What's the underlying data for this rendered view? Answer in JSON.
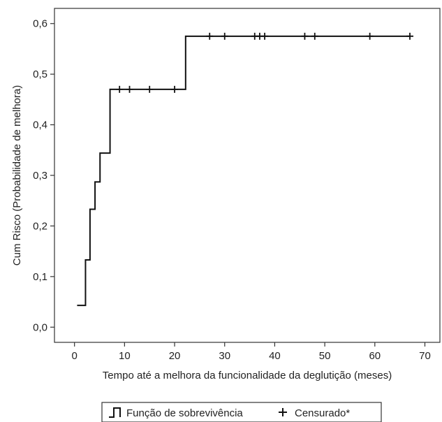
{
  "chart_data": {
    "type": "line",
    "title": "",
    "xlabel": "Tempo até a melhora da funcionalidade da deglutição (meses)",
    "ylabel": "Cum Risco (Probabilidade de melhora)",
    "xlim": [
      -4,
      73
    ],
    "ylim": [
      -0.03,
      0.63
    ],
    "x_ticks": [
      0,
      10,
      20,
      30,
      40,
      50,
      60,
      70
    ],
    "x_tick_labels": [
      "0",
      "10",
      "20",
      "30",
      "40",
      "50",
      "60",
      "70"
    ],
    "y_ticks": [
      0.0,
      0.1,
      0.2,
      0.3,
      0.4,
      0.5,
      0.6
    ],
    "y_tick_labels": [
      "0,0",
      "0,1",
      "0,2",
      "0,3",
      "0,4",
      "0,5",
      "0,6"
    ],
    "grid": false,
    "legend_position": "bottom",
    "series": [
      {
        "name": "Função de sobrevivência",
        "style": "step",
        "color": "#111111",
        "x": [
          1.5,
          2.2,
          3.1,
          4.1,
          5.1,
          7.1,
          22.2,
          67.0
        ],
        "y": [
          0.043,
          0.133,
          0.233,
          0.287,
          0.344,
          0.47,
          0.575,
          0.575
        ]
      },
      {
        "name": "Censurado*",
        "style": "marker-plus",
        "color": "#111111",
        "x": [
          9,
          11,
          15,
          20,
          27,
          30,
          36,
          37,
          38,
          46,
          48,
          59,
          67
        ],
        "y": [
          0.47,
          0.47,
          0.47,
          0.47,
          0.575,
          0.575,
          0.575,
          0.575,
          0.575,
          0.575,
          0.575,
          0.575,
          0.575
        ]
      }
    ]
  }
}
